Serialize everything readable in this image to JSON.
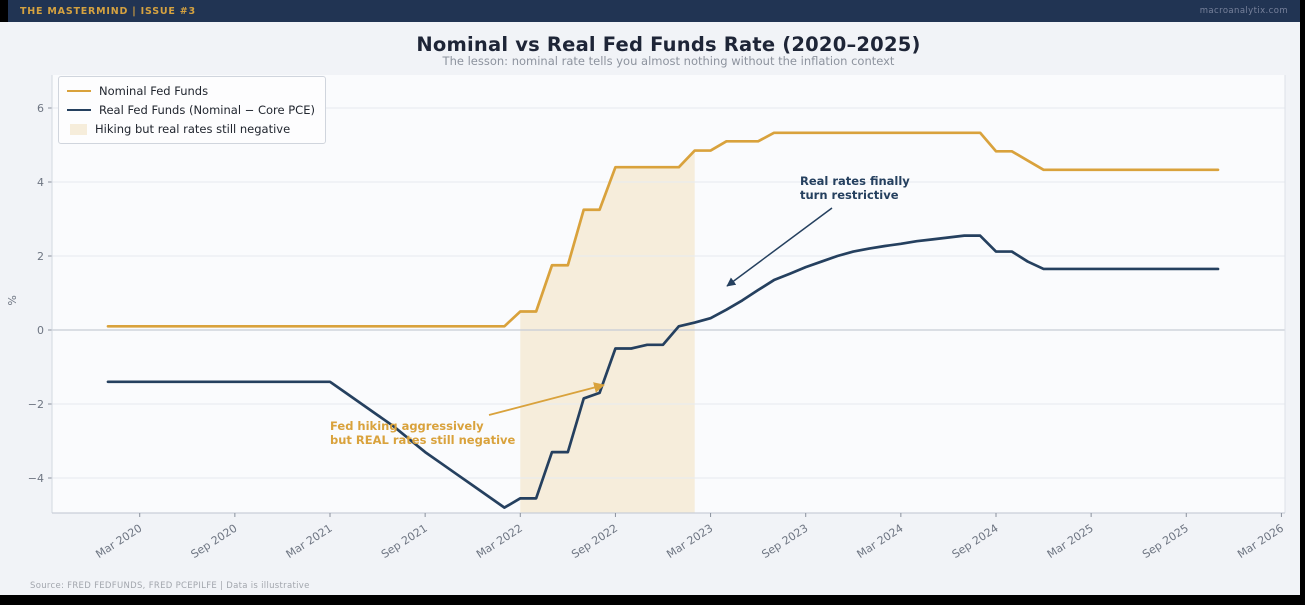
{
  "header": {
    "brand": "THE MASTERMIND  |  ISSUE #3",
    "site": "macroanalytix.com"
  },
  "footer": {
    "source": "Source: FRED FEDFUNDS, FRED PCEPILFE  |  Data is illustrative"
  },
  "chart_data": {
    "type": "line",
    "title": "Nominal vs Real Fed Funds Rate (2020–2025)",
    "subtitle": "The lesson: nominal rate tells you almost nothing without the inflation context",
    "ylabel": "%",
    "ylim": [
      -4.95,
      6.9
    ],
    "grid": true,
    "legend_position": "upper left",
    "x_start": "2020-01",
    "x_step": "1 month",
    "x_tick_labels": [
      "Mar 2020",
      "Sep 2020",
      "Mar 2021",
      "Sep 2021",
      "Mar 2022",
      "Sep 2022",
      "Mar 2023",
      "Sep 2023",
      "Mar 2024",
      "Sep 2024",
      "Mar 2025",
      "Sep 2025",
      "Mar 2026"
    ],
    "yticks": [
      6,
      4,
      2,
      0,
      -2,
      -4
    ],
    "series": [
      {
        "name": "Nominal Fed Funds",
        "color": "#D9A23C",
        "values": [
          0.1,
          0.1,
          0.1,
          0.1,
          0.1,
          0.1,
          0.1,
          0.1,
          0.1,
          0.1,
          0.1,
          0.1,
          0.1,
          0.1,
          0.1,
          0.1,
          0.1,
          0.1,
          0.1,
          0.1,
          0.1,
          0.1,
          0.1,
          0.1,
          0.1,
          0.1,
          0.5,
          0.5,
          1.75,
          1.75,
          3.25,
          3.25,
          4.4,
          4.4,
          4.4,
          4.4,
          4.4,
          4.85,
          4.85,
          5.1,
          5.1,
          5.1,
          5.33,
          5.33,
          5.33,
          5.33,
          5.33,
          5.33,
          5.33,
          5.33,
          5.33,
          5.33,
          5.33,
          5.33,
          5.33,
          5.33,
          4.83,
          4.83,
          4.58,
          4.33,
          4.33,
          4.33,
          4.33,
          4.33,
          4.33,
          4.33,
          4.33,
          4.33,
          4.33,
          4.33,
          4.33
        ]
      },
      {
        "name": "Real Fed Funds (Nominal − Core PCE)",
        "color": "#25405F",
        "values": [
          -1.4,
          -1.4,
          -1.4,
          -1.4,
          -1.4,
          -1.4,
          -1.4,
          -1.4,
          -1.4,
          -1.4,
          -1.4,
          -1.4,
          -1.4,
          -1.4,
          -1.4,
          -1.7,
          -2.0,
          -2.3,
          -2.6,
          -2.95,
          -3.3,
          -3.6,
          -3.9,
          -4.2,
          -4.5,
          -4.8,
          -4.55,
          -4.55,
          -3.3,
          -3.3,
          -1.85,
          -1.7,
          -0.5,
          -0.5,
          -0.4,
          -0.4,
          0.1,
          0.2,
          0.32,
          0.55,
          0.8,
          1.08,
          1.35,
          1.52,
          1.7,
          1.85,
          2.0,
          2.12,
          2.2,
          2.27,
          2.33,
          2.4,
          2.45,
          2.5,
          2.55,
          2.55,
          2.12,
          2.12,
          1.85,
          1.65,
          1.65,
          1.65,
          1.65,
          1.65,
          1.65,
          1.65,
          1.65,
          1.65,
          1.65,
          1.65,
          1.65
        ]
      }
    ],
    "shaded_region": {
      "label": "Hiking but real rates still negative",
      "from": "2022-03",
      "to": "2023-02",
      "color": "#F6EDDB"
    },
    "annotations": [
      {
        "id": "real-restrictive",
        "line1": "Real rates finally",
        "line2": "turn restrictive",
        "color": "#25405F"
      },
      {
        "id": "hiking-negative",
        "line1": "Fed hiking aggressively",
        "line2": "but REAL rates still negative",
        "color": "#D9A23C"
      }
    ]
  },
  "colors": {
    "header_bg": "#213453",
    "brand_gold": "#D5A240",
    "fig_bg": "#F1F3F7",
    "plot_bg": "#FAFBFD",
    "grid": "#E7EAF0",
    "zero_line": "#C7CCD5",
    "nominal": "#D9A23C",
    "real": "#25405F",
    "band": "#F6EDDB"
  }
}
